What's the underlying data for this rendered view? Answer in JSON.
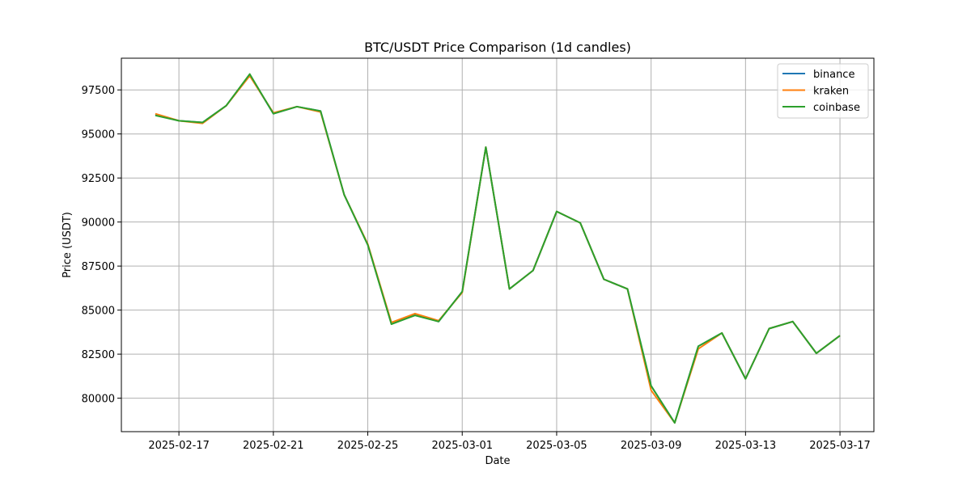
{
  "chart_data": {
    "type": "line",
    "title": "BTC/USDT Price Comparison (1d candles)",
    "xlabel": "Date",
    "ylabel": "Price (USDT)",
    "x": [
      "2025-02-16",
      "2025-02-17",
      "2025-02-18",
      "2025-02-19",
      "2025-02-20",
      "2025-02-21",
      "2025-02-22",
      "2025-02-23",
      "2025-02-24",
      "2025-02-25",
      "2025-02-26",
      "2025-02-27",
      "2025-02-28",
      "2025-03-01",
      "2025-03-02",
      "2025-03-03",
      "2025-03-04",
      "2025-03-05",
      "2025-03-06",
      "2025-03-07",
      "2025-03-08",
      "2025-03-09",
      "2025-03-10",
      "2025-03-11",
      "2025-03-12",
      "2025-03-13",
      "2025-03-14",
      "2025-03-15",
      "2025-03-16",
      "2025-03-17"
    ],
    "x_range": [
      "2025-02-14T13:30",
      "2025-03-18T10:30"
    ],
    "x_ticks": [
      "2025-02-17",
      "2025-02-21",
      "2025-02-25",
      "2025-03-01",
      "2025-03-05",
      "2025-03-09",
      "2025-03-13",
      "2025-03-17"
    ],
    "ylim": [
      78100,
      99300
    ],
    "y_ticks": [
      80000,
      82500,
      85000,
      87500,
      90000,
      92500,
      95000,
      97500
    ],
    "grid": true,
    "legend_position": "top-right",
    "series": [
      {
        "name": "binance",
        "color": "#1f77b4",
        "values": [
          96100,
          95750,
          95650,
          96600,
          98350,
          96150,
          96550,
          96300,
          91550,
          88700,
          84250,
          84750,
          84350,
          86050,
          94250,
          86200,
          87250,
          90600,
          89950,
          86750,
          86200,
          80700,
          78600,
          82950,
          83700,
          81100,
          83950,
          84350,
          82550,
          83550
        ]
      },
      {
        "name": "kraken",
        "color": "#ff7f0e",
        "values": [
          96150,
          95750,
          95600,
          96600,
          98300,
          96200,
          96550,
          96250,
          91550,
          88750,
          84300,
          84800,
          84400,
          86000,
          94250,
          86200,
          87250,
          90600,
          89950,
          86750,
          86200,
          80450,
          78600,
          82800,
          83700,
          81100,
          83950,
          84350,
          82550,
          83550
        ]
      },
      {
        "name": "coinbase",
        "color": "#2ca02c",
        "values": [
          96050,
          95750,
          95650,
          96600,
          98400,
          96150,
          96550,
          96300,
          91550,
          88700,
          84200,
          84700,
          84350,
          86050,
          94250,
          86200,
          87250,
          90600,
          89950,
          86750,
          86200,
          80700,
          78600,
          82950,
          83700,
          81100,
          83950,
          84350,
          82550,
          83550
        ]
      }
    ]
  }
}
